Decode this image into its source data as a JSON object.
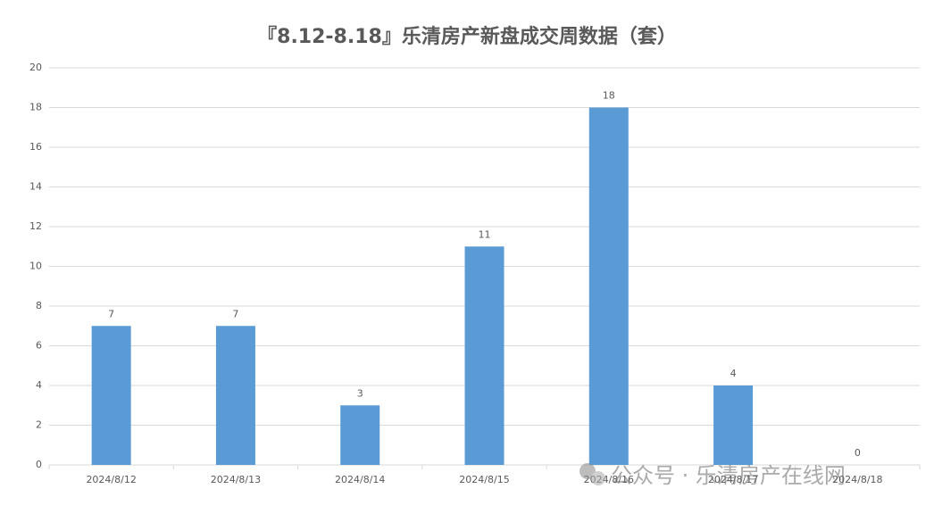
{
  "chart_data": {
    "type": "bar",
    "title": "『8.12-8.18』乐清房产新盘成交周数据（套）",
    "categories": [
      "2024/8/12",
      "2024/8/13",
      "2024/8/14",
      "2024/8/15",
      "2024/8/16",
      "2024/8/17",
      "2024/8/18"
    ],
    "values": [
      7,
      7,
      3,
      11,
      18,
      4,
      0
    ],
    "color": "#5b9bd5",
    "ylim": [
      0,
      20
    ],
    "yticks": [
      0,
      2,
      4,
      6,
      8,
      10,
      12,
      14,
      16,
      18,
      20
    ],
    "grid": true,
    "data_labels": true
  },
  "watermark": "公众号 · 乐清房产在线网"
}
